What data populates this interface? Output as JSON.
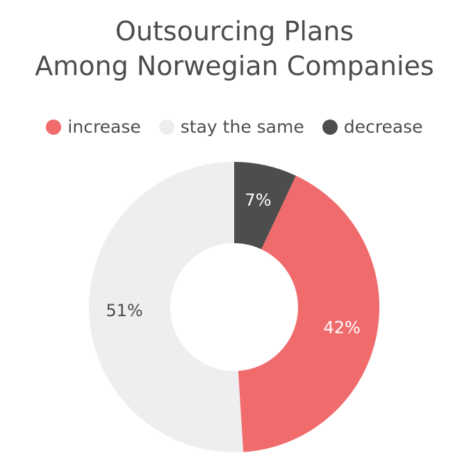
{
  "chart_data": {
    "type": "pie",
    "title_lines": [
      "Outsourcing Plans",
      "Among Norwegian Companies"
    ],
    "donut": true,
    "legend_position": "top",
    "slices": [
      {
        "label": "decrease",
        "value": 7,
        "display": "7%",
        "color": "#4d4d4d",
        "text_color": "#ffffff"
      },
      {
        "label": "increase",
        "value": 42,
        "display": "42%",
        "color": "#f06b6c",
        "text_color": "#ffffff"
      },
      {
        "label": "stay the same",
        "value": 51,
        "display": "51%",
        "color": "#eeeef0",
        "text_color": "#4d4d4d"
      }
    ],
    "legend": [
      {
        "label": "increase",
        "color": "#f06b6c"
      },
      {
        "label": "stay the same",
        "color": "#eeeef0"
      },
      {
        "label": "decrease",
        "color": "#4d4d4d"
      }
    ]
  }
}
